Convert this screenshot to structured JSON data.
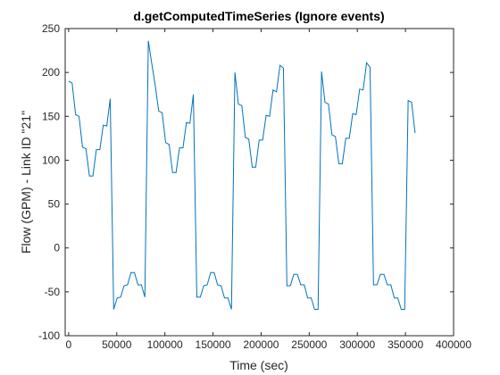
{
  "chart_data": {
    "type": "line",
    "title": "d.getComputedTimeSeries (Ignore events)",
    "xlabel": "Time (sec)",
    "ylabel": "Flow (GPM) - Link ID \"21\"",
    "xlim": [
      -3600,
      400000
    ],
    "ylim": [
      -100,
      250
    ],
    "xticks": [
      0,
      50000,
      100000,
      150000,
      200000,
      250000,
      300000,
      350000,
      400000
    ],
    "yticks": [
      -100,
      -50,
      0,
      50,
      100,
      150,
      200,
      250
    ],
    "grid": false,
    "line_color": "#0072bd",
    "series": [
      {
        "x": [
          0,
          3600,
          7200,
          10800,
          14400,
          18000,
          21600,
          25200,
          28800,
          32400,
          36000,
          39600,
          43200,
          46800,
          50400,
          54000,
          57600,
          61200,
          64800,
          68400,
          72000,
          75600,
          79200,
          82800,
          86400,
          90000,
          93600,
          97200,
          100800,
          104400,
          108000,
          111600,
          115200,
          118800,
          122400,
          126000,
          129600,
          133200,
          136800,
          140400,
          144000,
          147600,
          151200,
          154800,
          158400,
          162000,
          165600,
          169200,
          172800,
          176400,
          180000,
          183600,
          187200,
          190800,
          194400,
          198000,
          201600,
          205200,
          208800,
          212400,
          216000,
          219600,
          223200,
          226800,
          230400,
          234000,
          237600,
          241200,
          244800,
          248400,
          252000,
          255600,
          259200,
          262800,
          266400,
          270000,
          273600,
          277200,
          280800,
          284400,
          288000,
          291600,
          295200,
          298800,
          302400,
          306000,
          309600,
          313200,
          316800,
          320400,
          324000,
          327600,
          331200,
          334800,
          338400,
          342000,
          345600,
          349200,
          352800,
          356400,
          360000
        ],
        "values": [
          190,
          188,
          152,
          150,
          115,
          113,
          82,
          82,
          112,
          112,
          140,
          139,
          170,
          -70,
          -57,
          -56,
          -43,
          -42,
          -28,
          -28,
          -42,
          -42,
          -56,
          236,
          210,
          185,
          156,
          154,
          120,
          118,
          86,
          86,
          114,
          114,
          143,
          142,
          175,
          -56,
          -56,
          -43,
          -42,
          -28,
          -28,
          -42,
          -43,
          -57,
          -57,
          -70,
          200,
          164,
          162,
          126,
          124,
          92,
          92,
          123,
          123,
          151,
          150,
          180,
          178,
          208,
          205,
          -43,
          -43,
          -30,
          -30,
          -42,
          -42,
          -57,
          -57,
          -70,
          -70,
          201,
          166,
          164,
          129,
          127,
          96,
          96,
          125,
          125,
          153,
          152,
          181,
          180,
          211,
          206,
          -42,
          -42,
          -30,
          -30,
          -42,
          -42,
          -57,
          -57,
          -70,
          -70,
          168,
          166,
          131
        ]
      }
    ]
  }
}
